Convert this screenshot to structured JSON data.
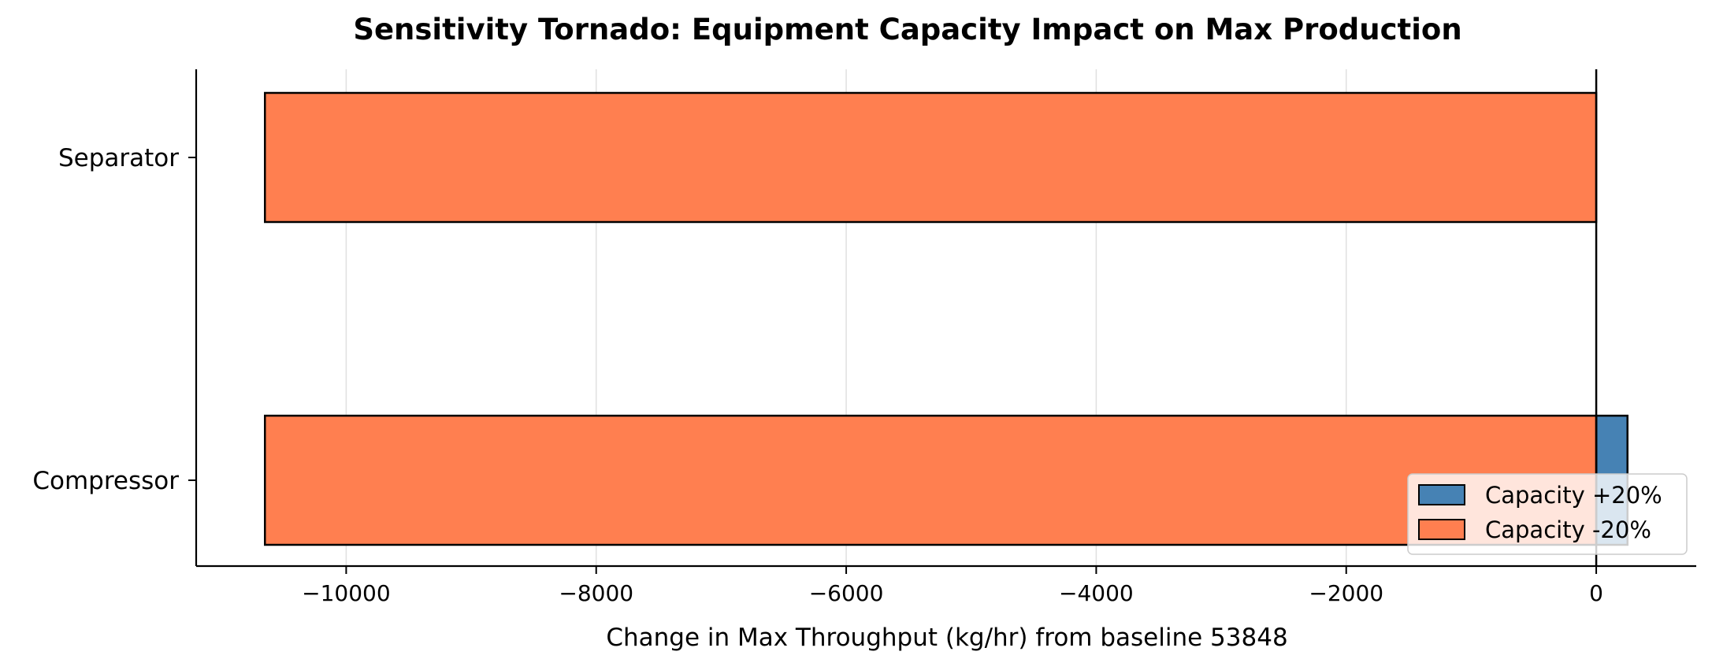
{
  "chart_data": {
    "type": "bar",
    "orientation": "horizontal",
    "title": "Sensitivity Tornado: Equipment Capacity Impact on Max Production",
    "xlabel": "Change in Max Throughput (kg/hr) from baseline 53848",
    "ylabel": "",
    "categories": [
      "Separator",
      "Compressor"
    ],
    "series": [
      {
        "name": "Capacity +20%",
        "color": "#4682b4",
        "values": [
          0,
          250
        ]
      },
      {
        "name": "Capacity -20%",
        "color": "#ff7f50",
        "values": [
          -10650,
          -10650
        ]
      }
    ],
    "xlim": [
      -11200,
      800
    ],
    "xticks": [
      -10000,
      -8000,
      -6000,
      -4000,
      -2000,
      0
    ],
    "xtick_labels": [
      "−10000",
      "−8000",
      "−6000",
      "−4000",
      "−2000",
      "0"
    ],
    "grid": "vertical",
    "legend_position": "lower-right",
    "zero_line": true
  }
}
